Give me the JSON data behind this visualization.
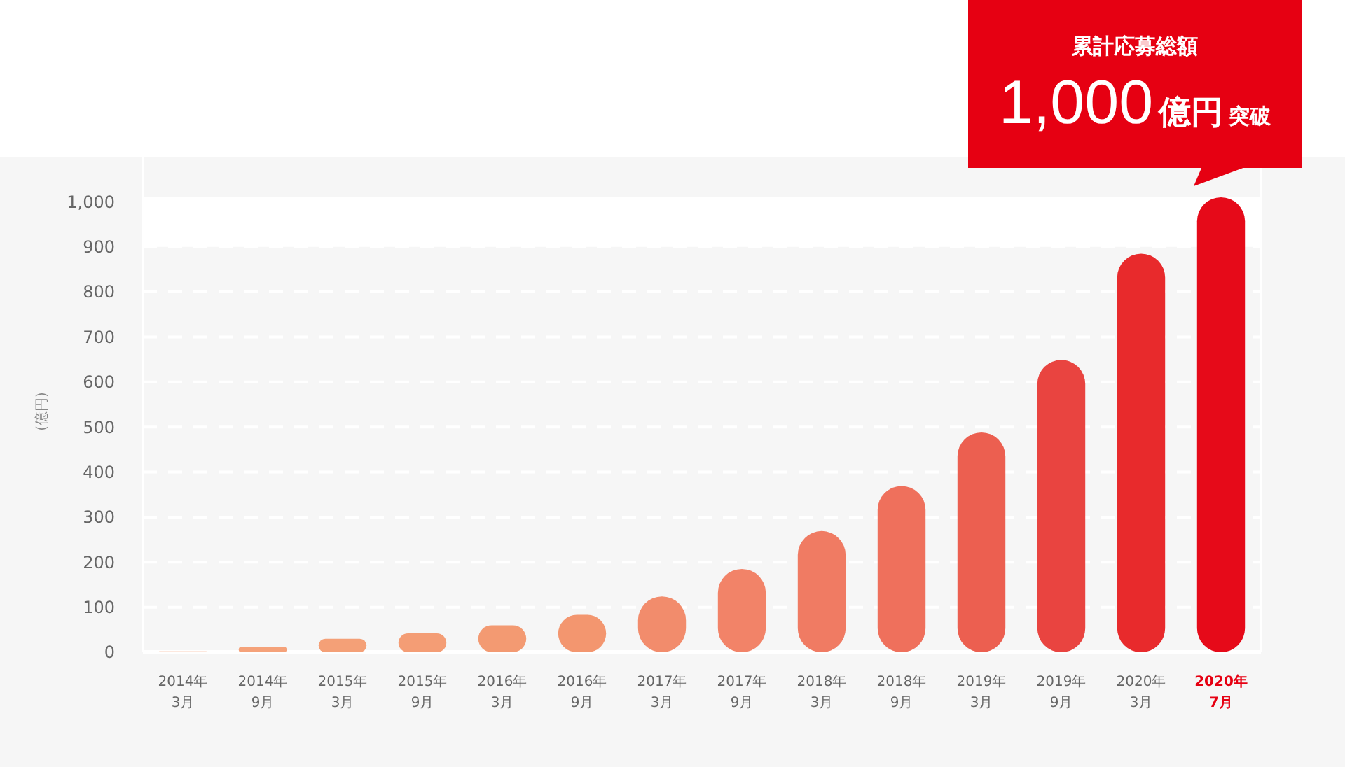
{
  "chart_data": {
    "type": "bar",
    "ylabel": "(億円)",
    "categories": [
      "2014年\n3月",
      "2014年\n9月",
      "2015年\n3月",
      "2015年\n9月",
      "2016年\n3月",
      "2016年\n9月",
      "2017年\n3月",
      "2017年\n9月",
      "2018年\n3月",
      "2018年\n9月",
      "2019年\n3月",
      "2019年\n9月",
      "2020年\n3月",
      "2020年\n7月"
    ],
    "values": [
      2,
      12,
      30,
      42,
      60,
      83,
      124,
      185,
      269,
      369,
      488,
      649,
      885,
      1010
    ],
    "colors": [
      "#f5a57c",
      "#f5a27a",
      "#f4a077",
      "#f49d75",
      "#f39a72",
      "#f3966f",
      "#f28c6c",
      "#f28368",
      "#f07b63",
      "#ef705c",
      "#ec5f50",
      "#e94440",
      "#e82a2c",
      "#e60a19"
    ],
    "ylim": [
      0,
      1100
    ],
    "yticks": [
      0,
      100,
      200,
      300,
      400,
      500,
      600,
      700,
      800,
      900,
      {
        "value": 1000,
        "label": "1,000"
      }
    ],
    "grid": "y",
    "bands": [
      {
        "axis": "y",
        "from": 900,
        "to": 1010,
        "color": "#ffffff"
      }
    ],
    "annotations": [
      "累計応募総額",
      "1,000",
      "億円",
      "突破"
    ]
  }
}
